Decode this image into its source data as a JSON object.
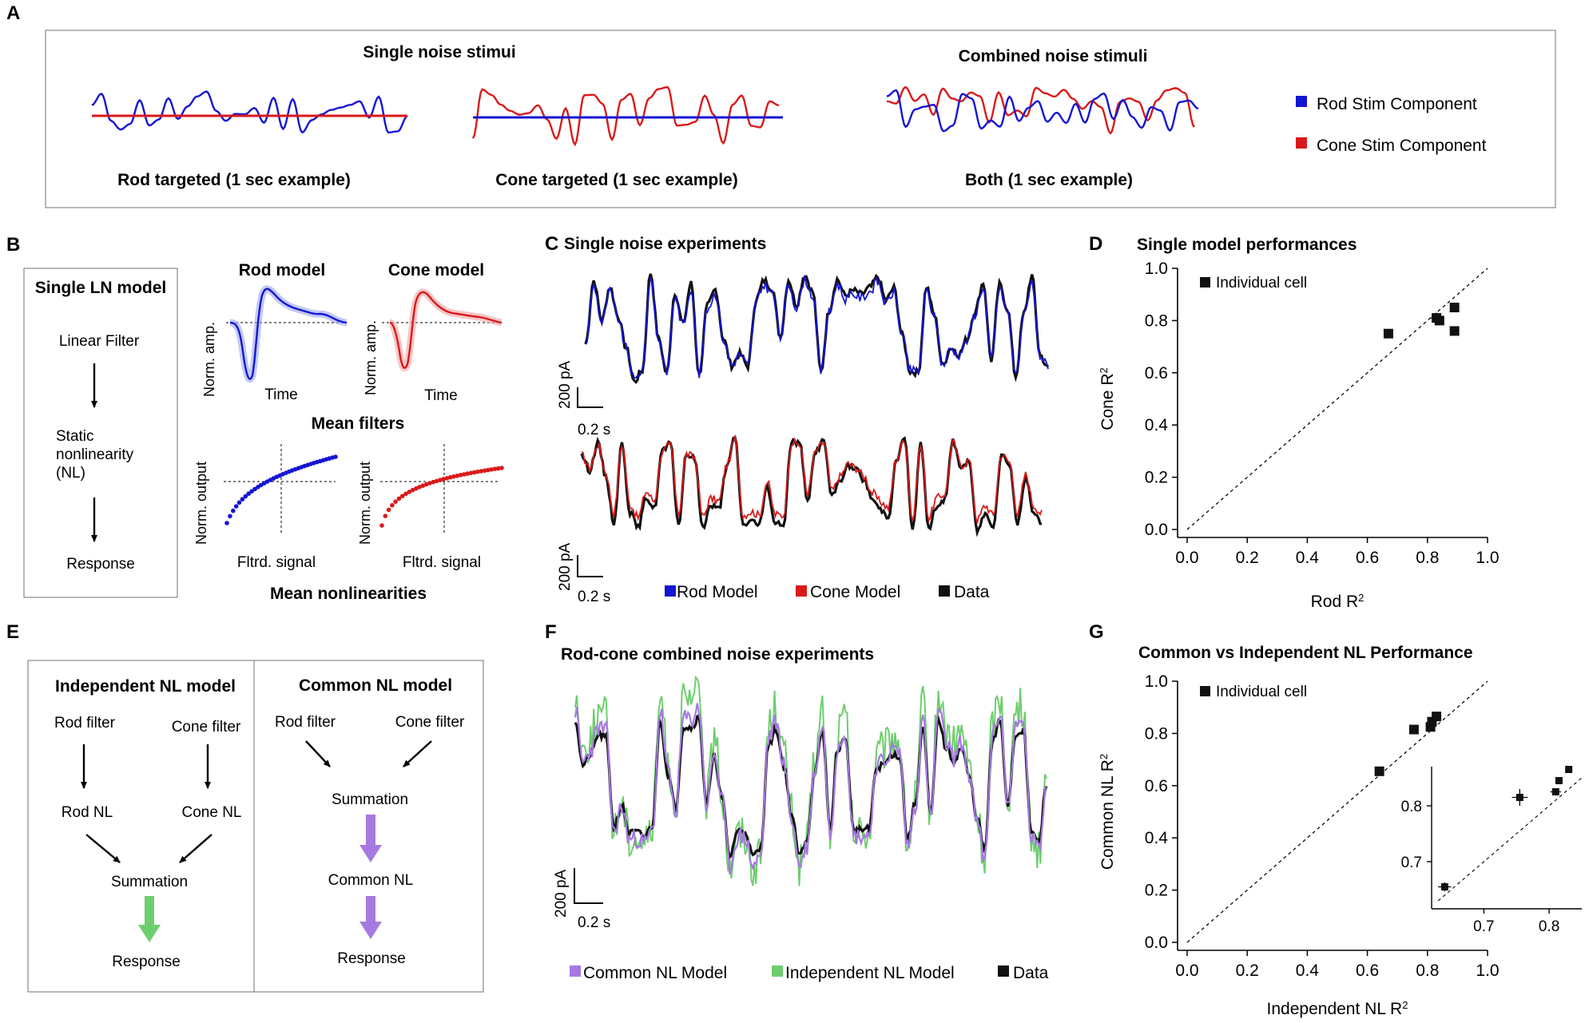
{
  "panel_labels": {
    "a": "A",
    "b": "B",
    "c": "C",
    "d": "D",
    "e": "E",
    "f": "F",
    "g": "G"
  },
  "panel_a": {
    "single_title": "Single noise stimui",
    "combined_title": "Combined noise stimuli",
    "rod_caption": "Rod targeted (1 sec example)",
    "cone_caption": "Cone targeted (1 sec example)",
    "both_caption": "Both (1 sec example)",
    "legend_rod": "Rod Stim Component",
    "legend_cone": "Cone Stim Component",
    "colors": {
      "rod": "#1515d4",
      "cone": "#d91a1a"
    }
  },
  "panel_b": {
    "model_box_title": "Single LN model",
    "linear_filter": "Linear Filter",
    "static_nl": [
      "Static",
      "nonlinearity",
      "(NL)"
    ],
    "response": "Response",
    "rod_model": "Rod model",
    "cone_model": "Cone model",
    "norm_amp": "Norm. amp.",
    "time": "Time",
    "mean_filters": "Mean filters",
    "norm_output": "Norm. output",
    "fltrd_signal": "Fltrd. signal",
    "mean_nonlinearities": "Mean nonlinearities"
  },
  "panel_c": {
    "title": "Single noise experiments",
    "scale_amp": "200 pA",
    "scale_time": "0.2 s",
    "legend": [
      "Rod Model",
      "Cone Model",
      "Data"
    ],
    "colors": {
      "rod": "#1515d4",
      "cone": "#d91a1a",
      "data": "#111111"
    }
  },
  "panel_e": {
    "independent_title": "Independent NL model",
    "common_title": "Common NL model",
    "rod_filter": "Rod filter",
    "cone_filter": "Cone filter",
    "rod_nl": "Rod NL",
    "cone_nl": "Cone NL",
    "summation": "Summation",
    "common_nl": "Common NL",
    "response": "Response",
    "colors": {
      "green": "#6dce6d",
      "purple": "#a679e0"
    }
  },
  "panel_f": {
    "title": "Rod-cone combined noise experiments",
    "scale_amp": "200 pA",
    "scale_time": "0.2 s",
    "legend": [
      "Common NL Model",
      "Independent NL Model",
      "Data"
    ],
    "colors": {
      "common": "#a679e0",
      "independent": "#6dce6d",
      "data": "#111111"
    }
  },
  "chart_data": [
    {
      "id": "panel_d",
      "type": "scatter",
      "title": "Single model performances",
      "xlabel": "Rod R",
      "ylabel": "Cone R",
      "label_superscript": "2",
      "legend": "Individual cell",
      "xlim": [
        0,
        1
      ],
      "ylim": [
        0,
        1
      ],
      "xticks": [
        "0.0",
        "0.2",
        "0.4",
        "0.6",
        "0.8",
        "1.0"
      ],
      "yticks": [
        "0.0",
        "0.2",
        "0.4",
        "0.6",
        "0.8",
        "1.0"
      ],
      "points": [
        {
          "x": 0.67,
          "y": 0.75
        },
        {
          "x": 0.89,
          "y": 0.85
        },
        {
          "x": 0.89,
          "y": 0.76
        },
        {
          "x": 0.84,
          "y": 0.8
        },
        {
          "x": 0.83,
          "y": 0.81,
          "xerr": 0.02,
          "yerr": 0.02
        }
      ],
      "identity_line": true
    },
    {
      "id": "panel_g",
      "type": "scatter",
      "title": "Common vs Independent NL Performance",
      "xlabel": "Independent NL R",
      "ylabel": "Common NL R",
      "label_superscript": "2",
      "legend": "Individual cell",
      "xlim": [
        0,
        1
      ],
      "ylim": [
        0,
        1
      ],
      "xticks": [
        "0.0",
        "0.2",
        "0.4",
        "0.6",
        "0.8",
        "1.0"
      ],
      "yticks": [
        "0.0",
        "0.2",
        "0.4",
        "0.6",
        "0.8",
        "1.0"
      ],
      "points": [
        {
          "x": 0.64,
          "y": 0.655
        },
        {
          "x": 0.755,
          "y": 0.815
        },
        {
          "x": 0.81,
          "y": 0.825
        },
        {
          "x": 0.815,
          "y": 0.845
        },
        {
          "x": 0.83,
          "y": 0.865
        }
      ],
      "identity_line": true,
      "inset": {
        "xlim": [
          0.62,
          0.85
        ],
        "ylim": [
          0.63,
          0.87
        ],
        "xticks": [
          "0.7",
          "0.8"
        ],
        "yticks": [
          "0.7",
          "0.8"
        ],
        "points": [
          {
            "x": 0.64,
            "y": 0.655,
            "xerr": 0.01,
            "yerr": 0.008
          },
          {
            "x": 0.755,
            "y": 0.815,
            "xerr": 0.012,
            "yerr": 0.015
          },
          {
            "x": 0.81,
            "y": 0.825,
            "xerr": 0.008,
            "yerr": 0.006
          },
          {
            "x": 0.815,
            "y": 0.845,
            "xerr": 0.005,
            "yerr": 0.005
          },
          {
            "x": 0.83,
            "y": 0.865,
            "xerr": 0.004,
            "yerr": 0.004
          }
        ]
      }
    }
  ]
}
